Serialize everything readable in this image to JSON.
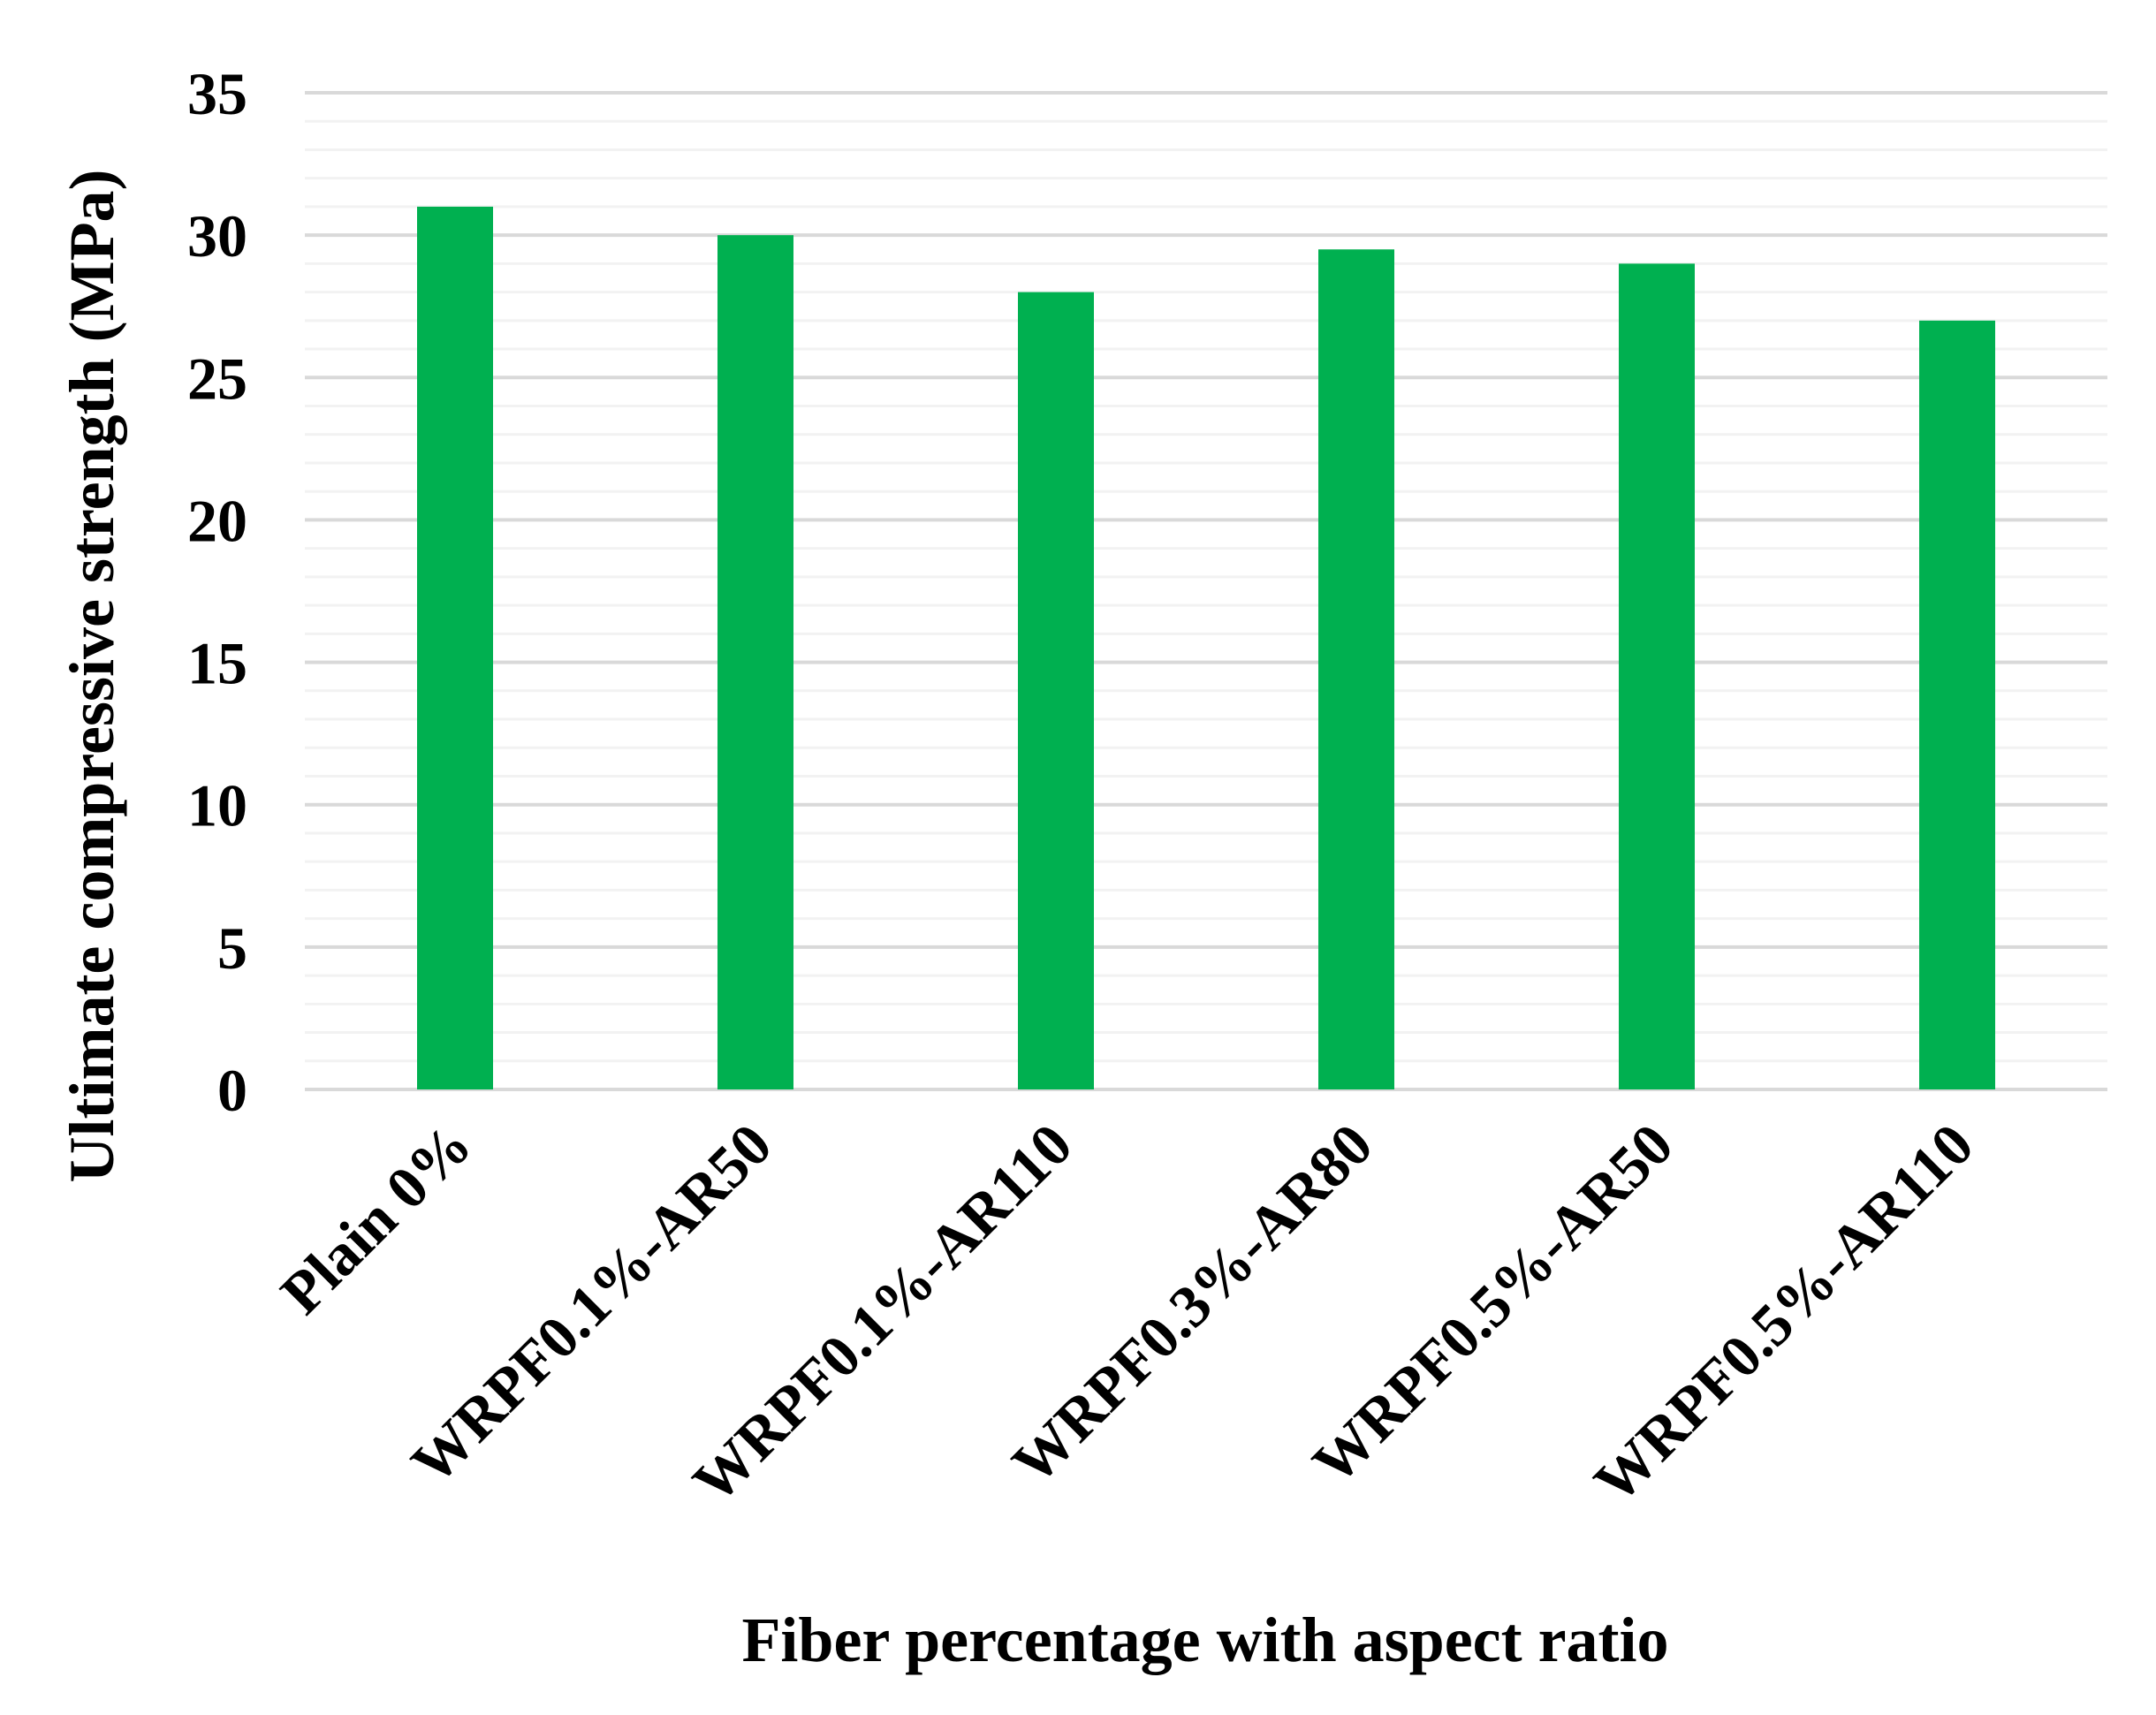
{
  "chart_data": {
    "type": "bar",
    "title": "",
    "xlabel": "Fiber percentage with aspect ratio",
    "ylabel": "Ultimate compressive strength (MPa)",
    "categories": [
      "Plain 0%",
      "WRPF0.1%-AR50",
      "WRPF0.1%-AR110",
      "WRPF0.3%-AR80",
      "WRPF0.5%-AR50",
      "WRPF0.5%-AR110"
    ],
    "values": [
      31,
      30,
      28,
      29.5,
      29,
      27
    ],
    "ylim": [
      0,
      35
    ],
    "yticks": [
      0,
      5,
      10,
      15,
      20,
      25,
      30,
      35
    ],
    "minor_tick_step": 1,
    "grid": true,
    "legend": "none",
    "bar_color": "#00b050",
    "major_grid_color": "#d9d9d9",
    "minor_grid_color": "#f2f2f2"
  }
}
